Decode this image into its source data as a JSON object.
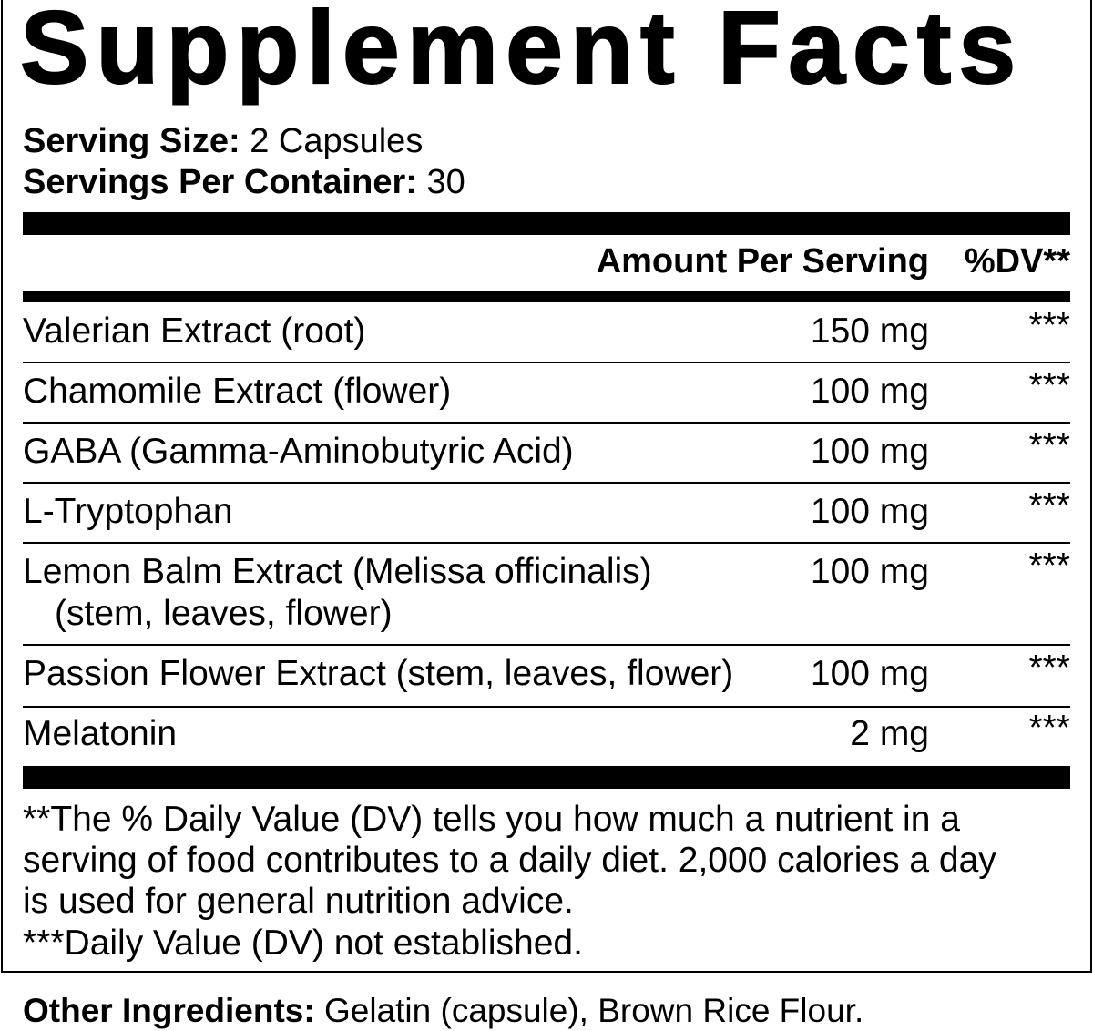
{
  "title": "Supplement Facts",
  "serving_size": {
    "label": "Serving Size:",
    "value": "2 Capsules"
  },
  "servings_per_container": {
    "label": "Servings Per Container:",
    "value": "30"
  },
  "header": {
    "amount": "Amount Per Serving",
    "dv": "%DV**"
  },
  "rows": [
    {
      "name": "Valerian Extract (root)",
      "amount": "150 mg",
      "dv": "***"
    },
    {
      "name": "Chamomile Extract (flower)",
      "amount": "100 mg",
      "dv": "***"
    },
    {
      "name": "GABA (Gamma-Aminobutyric Acid)",
      "amount": "100 mg",
      "dv": "***"
    },
    {
      "name": "L-Tryptophan",
      "amount": "100 mg",
      "dv": "***"
    },
    {
      "name": "Lemon Balm Extract (Melissa officinalis)",
      "sub": "(stem, leaves, flower)",
      "amount": "100 mg",
      "dv": "***"
    },
    {
      "name": "Passion Flower Extract (stem, leaves, flower)",
      "amount": "100 mg",
      "dv": "***"
    },
    {
      "name": "Melatonin",
      "amount": "2 mg",
      "dv": "***"
    }
  ],
  "footnotes": [
    "**The % Daily Value (DV) tells you how much a nutrient in a",
    "serving of food contributes to a daily diet. 2,000 calories a day",
    "is used for general nutrition advice.",
    "***Daily Value (DV) not established."
  ],
  "other_ingredients": {
    "label": "Other Ingredients:",
    "value": "Gelatin (capsule), Brown Rice Flour."
  }
}
